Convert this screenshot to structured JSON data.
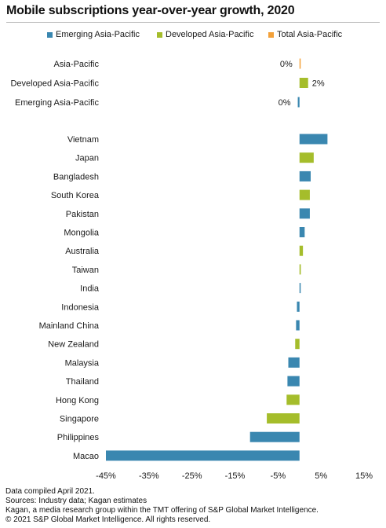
{
  "chart_data": {
    "type": "bar",
    "orientation": "horizontal",
    "title": "Mobile subscriptions year-over-year growth, 2020",
    "xlabel": "",
    "ylabel": "",
    "xlim": [
      -45,
      15
    ],
    "xticks": [
      "-45%",
      "-35%",
      "-25%",
      "-15%",
      "-5%",
      "5%",
      "15%"
    ],
    "xtick_values": [
      -45,
      -35,
      -25,
      -15,
      -5,
      5,
      15
    ],
    "grid": false,
    "legend_position": "top",
    "legend": [
      {
        "name": "Emerging Asia-Pacific",
        "color": "#3a87b0"
      },
      {
        "name": "Developed Asia-Pacific",
        "color": "#a5bd2b"
      },
      {
        "name": "Total Asia-Pacific",
        "color": "#f3a13a"
      }
    ],
    "summary_bars": [
      {
        "category": "Asia-Pacific",
        "value": 0.2,
        "group": "Total Asia-Pacific",
        "label": "0%"
      },
      {
        "category": "Developed Asia-Pacific",
        "value": 2.0,
        "group": "Developed Asia-Pacific",
        "label": "2%"
      },
      {
        "category": "Emerging Asia-Pacific",
        "value": -0.4,
        "group": "Emerging Asia-Pacific",
        "label": "0%"
      }
    ],
    "country_bars": [
      {
        "category": "Vietnam",
        "value": 6.5,
        "group": "Emerging Asia-Pacific"
      },
      {
        "category": "Japan",
        "value": 3.3,
        "group": "Developed Asia-Pacific"
      },
      {
        "category": "Bangladesh",
        "value": 2.6,
        "group": "Emerging Asia-Pacific"
      },
      {
        "category": "South Korea",
        "value": 2.4,
        "group": "Developed Asia-Pacific"
      },
      {
        "category": "Pakistan",
        "value": 2.4,
        "group": "Emerging Asia-Pacific"
      },
      {
        "category": "Mongolia",
        "value": 1.2,
        "group": "Emerging Asia-Pacific"
      },
      {
        "category": "Australia",
        "value": 0.8,
        "group": "Developed Asia-Pacific"
      },
      {
        "category": "Taiwan",
        "value": 0.3,
        "group": "Developed Asia-Pacific"
      },
      {
        "category": "India",
        "value": 0.2,
        "group": "Emerging Asia-Pacific"
      },
      {
        "category": "Indonesia",
        "value": -0.6,
        "group": "Emerging Asia-Pacific"
      },
      {
        "category": "Mainland China",
        "value": -0.8,
        "group": "Emerging Asia-Pacific"
      },
      {
        "category": "New Zealand",
        "value": -1.0,
        "group": "Developed Asia-Pacific"
      },
      {
        "category": "Malaysia",
        "value": -2.6,
        "group": "Emerging Asia-Pacific"
      },
      {
        "category": "Thailand",
        "value": -2.8,
        "group": "Emerging Asia-Pacific"
      },
      {
        "category": "Hong Kong",
        "value": -3.0,
        "group": "Developed Asia-Pacific"
      },
      {
        "category": "Singapore",
        "value": -7.6,
        "group": "Developed Asia-Pacific"
      },
      {
        "category": "Philippines",
        "value": -11.5,
        "group": "Emerging Asia-Pacific"
      },
      {
        "category": "Macao",
        "value": -45.0,
        "group": "Emerging Asia-Pacific"
      }
    ]
  },
  "footer": {
    "line1": "Data compiled April 2021.",
    "line2": "Sources: Industry data; Kagan estimates",
    "line3": "Kagan, a media research group within the TMT offering of S&P Global Market Intelligence.",
    "line4": "© 2021 S&P Global Market Intelligence. All rights reserved."
  }
}
